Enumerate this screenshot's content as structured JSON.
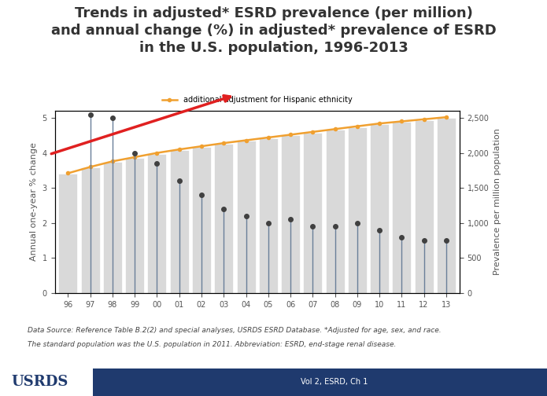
{
  "chart_data": {
    "type": "bar",
    "title": "Trends in adjusted* ESRD prevalence (per million)\nand annual change (%) in adjusted* prevalence of ESRD\nin the U.S. population, 1996-2013",
    "y_label": "Annual one-year % change",
    "y2_label": "Prevalence per million population",
    "categories": [
      "96",
      "97",
      "98",
      "99",
      "00",
      "01",
      "02",
      "03",
      "04",
      "05",
      "06",
      "07",
      "08",
      "09",
      "10",
      "11",
      "12",
      "13"
    ],
    "series": [
      {
        "type": "bar",
        "axis": "y2",
        "color": "#d9d9d9",
        "values": [
          1700,
          1790,
          1870,
          1930,
          1990,
          2040,
          2085,
          2130,
          2170,
          2210,
          2250,
          2290,
          2330,
          2370,
          2410,
          2440,
          2470,
          2500
        ]
      },
      {
        "name": "additional adjustment for Hispanic ethnicity",
        "type": "line",
        "axis": "y2",
        "color": "#f0a030",
        "marker": "o",
        "line_style": "solid",
        "values": [
          1710,
          1800,
          1880,
          1940,
          2000,
          2050,
          2095,
          2140,
          2180,
          2220,
          2260,
          2300,
          2340,
          2380,
          2420,
          2450,
          2480,
          2510
        ]
      },
      {
        "type": "lollipop",
        "axis": "y",
        "color": "#404040",
        "marker": "o",
        "line_style": "solid",
        "values": [
          null,
          5.1,
          5.0,
          4.0,
          3.7,
          3.2,
          2.8,
          2.4,
          2.2,
          2.0,
          2.1,
          1.9,
          1.9,
          2.0,
          1.8,
          1.6,
          1.5,
          1.5
        ]
      }
    ],
    "ylim": [
      0,
      5.2
    ],
    "yticks": [
      0,
      1,
      2,
      3,
      4,
      5
    ],
    "y2lim": [
      0,
      2600
    ],
    "y2ticks": [
      0,
      500,
      {
        "value": 1000,
        "label": "1,000"
      },
      {
        "value": 1500,
        "label": "1,500"
      },
      {
        "value": 2000,
        "label": "2,000"
      },
      {
        "value": 2500,
        "label": "2,500"
      }
    ],
    "grid": false,
    "legend": "top",
    "annotations": [
      "Data Source: Reference Table B.2(2) and special analyses, USRDS ESRD Database. *Adjusted for age, sex, and race.",
      "The standard population was the U.S. population in 2011. Abbreviation: ESRD, end-stage renal disease."
    ],
    "footer": [
      "USRDS",
      "Vol 2, ESRD, Ch 1"
    ]
  }
}
